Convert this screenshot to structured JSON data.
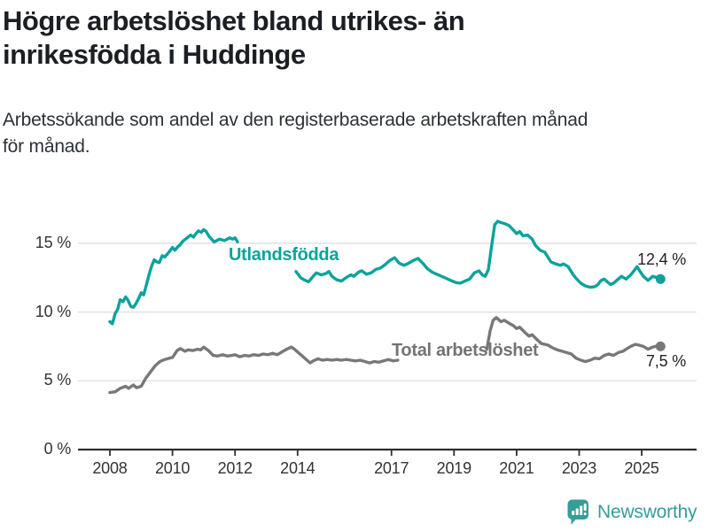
{
  "header": {
    "title_lines": [
      "Högre arbetslöshet bland utrikes- än",
      "inrikesfödda i Huddinge"
    ],
    "subtitle_lines": [
      "Arbetssökande som andel av den registerbaserade arbetskraften månad",
      "för månad."
    ]
  },
  "chart_data": {
    "type": "line",
    "title": "Högre arbetslöshet bland utrikes- än inrikesfödda i Huddinge",
    "subtitle": "Arbetssökande som andel av den registerbaserade arbetskraften månad för månad.",
    "grid": "horizontal",
    "x_axis": {
      "tick_years": [
        2008,
        2010,
        2012,
        2014,
        2017,
        2019,
        2021,
        2023,
        2025
      ],
      "tick_labels": [
        "2008",
        "2010",
        "2012",
        "2014",
        "2017",
        "2019",
        "2021",
        "2023",
        "2025"
      ],
      "range": [
        2007.5,
        2026.2
      ]
    },
    "y_axis": {
      "tick_values": [
        0,
        5,
        10,
        15
      ],
      "tick_labels": [
        "0 %",
        "5 %",
        "10 %",
        "15 %"
      ],
      "unit": "%",
      "range": [
        0,
        17.5
      ]
    },
    "series": [
      {
        "name": "Utlandsfödda",
        "color": "#0aa39b",
        "end_label": "12,4 %",
        "end_value": 12.4,
        "segments": [
          [
            [
              2008.0,
              9.3
            ],
            [
              2008.08,
              9.15
            ],
            [
              2008.17,
              9.9
            ],
            [
              2008.25,
              10.2
            ],
            [
              2008.33,
              10.9
            ],
            [
              2008.42,
              10.75
            ],
            [
              2008.5,
              11.1
            ],
            [
              2008.58,
              10.85
            ],
            [
              2008.67,
              10.4
            ],
            [
              2008.75,
              10.35
            ],
            [
              2008.83,
              10.6
            ],
            [
              2008.92,
              11.0
            ],
            [
              2009.0,
              11.4
            ],
            [
              2009.08,
              11.25
            ],
            [
              2009.17,
              12.0
            ],
            [
              2009.25,
              12.7
            ],
            [
              2009.33,
              13.3
            ],
            [
              2009.42,
              13.8
            ],
            [
              2009.5,
              13.65
            ],
            [
              2009.58,
              13.6
            ],
            [
              2009.67,
              14.1
            ],
            [
              2009.75,
              14.0
            ],
            [
              2009.83,
              14.2
            ],
            [
              2009.92,
              14.45
            ],
            [
              2010.0,
              14.7
            ],
            [
              2010.08,
              14.5
            ],
            [
              2010.17,
              14.75
            ],
            [
              2010.25,
              14.9
            ],
            [
              2010.33,
              15.15
            ],
            [
              2010.42,
              15.3
            ],
            [
              2010.5,
              15.45
            ],
            [
              2010.58,
              15.6
            ],
            [
              2010.67,
              15.45
            ],
            [
              2010.75,
              15.7
            ],
            [
              2010.83,
              15.9
            ],
            [
              2010.92,
              15.8
            ],
            [
              2011.0,
              16.0
            ],
            [
              2011.08,
              15.85
            ],
            [
              2011.17,
              15.5
            ],
            [
              2011.25,
              15.3
            ],
            [
              2011.33,
              15.1
            ],
            [
              2011.42,
              15.2
            ],
            [
              2011.5,
              15.3
            ],
            [
              2011.58,
              15.25
            ],
            [
              2011.67,
              15.2
            ],
            [
              2011.75,
              15.3
            ],
            [
              2011.83,
              15.4
            ],
            [
              2011.92,
              15.3
            ],
            [
              2012.0,
              15.4
            ],
            [
              2012.08,
              15.1
            ]
          ],
          [
            [
              2013.95,
              12.95
            ],
            [
              2014.1,
              12.5
            ],
            [
              2014.2,
              12.35
            ],
            [
              2014.35,
              12.2
            ],
            [
              2014.5,
              12.6
            ],
            [
              2014.6,
              12.85
            ],
            [
              2014.75,
              12.7
            ],
            [
              2014.9,
              12.8
            ],
            [
              2015.0,
              12.95
            ],
            [
              2015.1,
              12.6
            ],
            [
              2015.25,
              12.35
            ],
            [
              2015.4,
              12.25
            ],
            [
              2015.55,
              12.5
            ],
            [
              2015.7,
              12.7
            ],
            [
              2015.8,
              12.6
            ],
            [
              2015.95,
              12.9
            ],
            [
              2016.05,
              13.0
            ],
            [
              2016.2,
              12.75
            ],
            [
              2016.35,
              12.85
            ],
            [
              2016.5,
              13.1
            ],
            [
              2016.65,
              13.2
            ],
            [
              2016.8,
              13.45
            ],
            [
              2016.95,
              13.75
            ],
            [
              2017.1,
              13.95
            ],
            [
              2017.25,
              13.55
            ],
            [
              2017.4,
              13.4
            ],
            [
              2017.55,
              13.55
            ],
            [
              2017.7,
              13.75
            ],
            [
              2017.85,
              13.9
            ],
            [
              2018.0,
              13.55
            ],
            [
              2018.15,
              13.15
            ],
            [
              2018.3,
              12.9
            ],
            [
              2018.45,
              12.75
            ],
            [
              2018.6,
              12.6
            ],
            [
              2018.75,
              12.45
            ],
            [
              2018.9,
              12.3
            ],
            [
              2019.05,
              12.15
            ],
            [
              2019.2,
              12.1
            ],
            [
              2019.35,
              12.25
            ],
            [
              2019.5,
              12.4
            ],
            [
              2019.65,
              12.85
            ],
            [
              2019.8,
              13.0
            ],
            [
              2019.9,
              12.7
            ],
            [
              2020.0,
              12.6
            ],
            [
              2020.1,
              13.1
            ],
            [
              2020.2,
              14.8
            ],
            [
              2020.3,
              16.35
            ],
            [
              2020.4,
              16.6
            ],
            [
              2020.5,
              16.5
            ],
            [
              2020.6,
              16.45
            ],
            [
              2020.75,
              16.3
            ],
            [
              2020.9,
              15.95
            ],
            [
              2021.0,
              15.7
            ],
            [
              2021.1,
              15.85
            ],
            [
              2021.2,
              15.55
            ],
            [
              2021.35,
              15.6
            ],
            [
              2021.5,
              15.3
            ],
            [
              2021.6,
              14.85
            ],
            [
              2021.75,
              14.5
            ],
            [
              2021.9,
              14.35
            ],
            [
              2022.0,
              14.0
            ],
            [
              2022.1,
              13.65
            ],
            [
              2022.25,
              13.5
            ],
            [
              2022.4,
              13.4
            ],
            [
              2022.5,
              13.5
            ],
            [
              2022.65,
              13.3
            ],
            [
              2022.8,
              12.75
            ],
            [
              2022.9,
              12.45
            ],
            [
              2023.05,
              12.1
            ],
            [
              2023.2,
              11.9
            ],
            [
              2023.35,
              11.8
            ],
            [
              2023.5,
              11.85
            ],
            [
              2023.6,
              12.0
            ],
            [
              2023.7,
              12.3
            ],
            [
              2023.8,
              12.4
            ],
            [
              2023.9,
              12.2
            ],
            [
              2024.0,
              12.0
            ],
            [
              2024.1,
              12.1
            ],
            [
              2024.25,
              12.4
            ],
            [
              2024.35,
              12.6
            ],
            [
              2024.5,
              12.4
            ],
            [
              2024.65,
              12.7
            ],
            [
              2024.75,
              13.0
            ],
            [
              2024.85,
              13.3
            ],
            [
              2024.95,
              12.95
            ],
            [
              2025.05,
              12.6
            ],
            [
              2025.2,
              12.3
            ],
            [
              2025.35,
              12.6
            ],
            [
              2025.5,
              12.5
            ],
            [
              2025.6,
              12.4
            ]
          ]
        ]
      },
      {
        "name": "Total arbetslöshet",
        "color": "#787878",
        "end_label": "7,5 %",
        "end_value": 7.5,
        "segments": [
          [
            [
              2008.0,
              4.15
            ],
            [
              2008.17,
              4.2
            ],
            [
              2008.33,
              4.45
            ],
            [
              2008.5,
              4.6
            ],
            [
              2008.6,
              4.45
            ],
            [
              2008.75,
              4.7
            ],
            [
              2008.85,
              4.5
            ],
            [
              2009.0,
              4.6
            ],
            [
              2009.15,
              5.2
            ],
            [
              2009.3,
              5.65
            ],
            [
              2009.45,
              6.1
            ],
            [
              2009.6,
              6.4
            ],
            [
              2009.75,
              6.55
            ],
            [
              2009.9,
              6.65
            ],
            [
              2010.0,
              6.7
            ],
            [
              2010.15,
              7.2
            ],
            [
              2010.25,
              7.35
            ],
            [
              2010.4,
              7.15
            ],
            [
              2010.5,
              7.25
            ],
            [
              2010.65,
              7.2
            ],
            [
              2010.8,
              7.3
            ],
            [
              2010.9,
              7.25
            ],
            [
              2011.0,
              7.45
            ],
            [
              2011.15,
              7.2
            ],
            [
              2011.3,
              6.85
            ],
            [
              2011.45,
              6.8
            ],
            [
              2011.6,
              6.9
            ],
            [
              2011.75,
              6.8
            ],
            [
              2011.9,
              6.85
            ],
            [
              2012.0,
              6.9
            ],
            [
              2012.15,
              6.75
            ],
            [
              2012.3,
              6.85
            ],
            [
              2012.45,
              6.8
            ],
            [
              2012.6,
              6.9
            ],
            [
              2012.75,
              6.85
            ],
            [
              2012.9,
              6.95
            ],
            [
              2013.05,
              6.9
            ],
            [
              2013.2,
              7.0
            ],
            [
              2013.35,
              6.9
            ],
            [
              2013.5,
              7.1
            ],
            [
              2013.65,
              7.3
            ],
            [
              2013.8,
              7.45
            ],
            [
              2013.9,
              7.3
            ],
            [
              2014.0,
              7.1
            ],
            [
              2014.15,
              6.8
            ],
            [
              2014.3,
              6.5
            ],
            [
              2014.4,
              6.3
            ],
            [
              2014.5,
              6.45
            ],
            [
              2014.65,
              6.6
            ],
            [
              2014.8,
              6.5
            ],
            [
              2014.95,
              6.55
            ],
            [
              2015.1,
              6.5
            ],
            [
              2015.25,
              6.55
            ],
            [
              2015.4,
              6.5
            ],
            [
              2015.55,
              6.55
            ],
            [
              2015.7,
              6.5
            ],
            [
              2015.85,
              6.45
            ],
            [
              2016.0,
              6.5
            ],
            [
              2016.15,
              6.4
            ],
            [
              2016.3,
              6.3
            ],
            [
              2016.45,
              6.4
            ],
            [
              2016.6,
              6.35
            ],
            [
              2016.75,
              6.45
            ],
            [
              2016.9,
              6.55
            ],
            [
              2017.05,
              6.45
            ],
            [
              2017.2,
              6.5
            ]
          ],
          [
            [
              2020.05,
              7.3
            ],
            [
              2020.15,
              8.6
            ],
            [
              2020.25,
              9.4
            ],
            [
              2020.35,
              9.6
            ],
            [
              2020.5,
              9.3
            ],
            [
              2020.6,
              9.4
            ],
            [
              2020.75,
              9.2
            ],
            [
              2020.9,
              9.0
            ],
            [
              2021.0,
              8.8
            ],
            [
              2021.1,
              8.9
            ],
            [
              2021.25,
              8.55
            ],
            [
              2021.4,
              8.25
            ],
            [
              2021.5,
              8.35
            ],
            [
              2021.65,
              8.0
            ],
            [
              2021.8,
              7.7
            ],
            [
              2022.0,
              7.6
            ],
            [
              2022.15,
              7.4
            ],
            [
              2022.3,
              7.25
            ],
            [
              2022.45,
              7.15
            ],
            [
              2022.6,
              7.05
            ],
            [
              2022.75,
              6.95
            ],
            [
              2022.9,
              6.65
            ],
            [
              2023.05,
              6.5
            ],
            [
              2023.2,
              6.4
            ],
            [
              2023.35,
              6.5
            ],
            [
              2023.5,
              6.65
            ],
            [
              2023.65,
              6.6
            ],
            [
              2023.8,
              6.85
            ],
            [
              2023.95,
              6.95
            ],
            [
              2024.1,
              6.85
            ],
            [
              2024.25,
              7.05
            ],
            [
              2024.4,
              7.15
            ],
            [
              2024.5,
              7.3
            ],
            [
              2024.65,
              7.5
            ],
            [
              2024.8,
              7.65
            ],
            [
              2024.9,
              7.6
            ],
            [
              2025.05,
              7.5
            ],
            [
              2025.2,
              7.3
            ],
            [
              2025.35,
              7.45
            ],
            [
              2025.5,
              7.55
            ],
            [
              2025.6,
              7.5
            ]
          ]
        ]
      }
    ],
    "legend_position": "inline-labels"
  },
  "footer": {
    "brand": "Newsworthy",
    "brand_color": "#369d98"
  }
}
